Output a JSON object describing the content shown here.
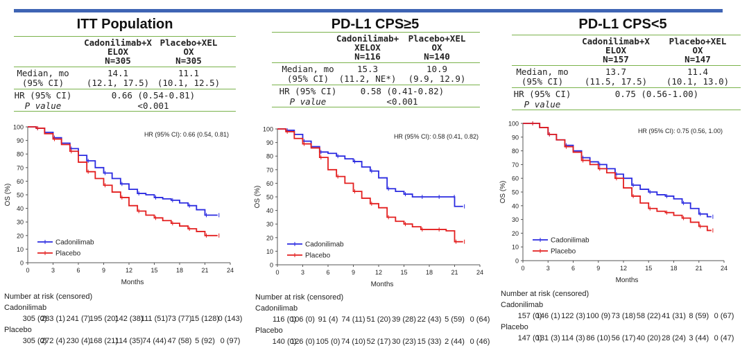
{
  "slide": {
    "accent_color": "#3f64b4",
    "line_color": "#79b24a"
  },
  "colors": {
    "cadonilimab": "#2a2ae0",
    "placebo": "#e31e1e"
  },
  "panels": [
    {
      "title": "ITT Population",
      "col1": [
        "Cadonilimab+X",
        "ELOX",
        "N=305"
      ],
      "col2": [
        "Placebo+XEL",
        "OX",
        "N=305"
      ],
      "median_label": [
        "Median, mo",
        "(95% CI)"
      ],
      "median1": [
        "14.1",
        "(12.1, 17.5)"
      ],
      "median2": [
        "11.1",
        "(10.1, 12.5)"
      ],
      "hr_label": "HR (95% CI)",
      "hr_value": "0.66 (0.54-0.81)",
      "p_label": "P value",
      "p_value": "<0.001",
      "hr_annotation": "HR (95% CI): 0.66 (0.54, 0.81)",
      "risk_title": "Number at risk (censored)",
      "risk_cad_label": "Cadonilimab",
      "risk_pbo_label": "Placebo",
      "risk_cad": [
        "305 (0)",
        "283 (1)",
        "241 (7)",
        "195 (20)",
        "142 (38)",
        "111 (51)",
        "73 (77)",
        "15 (128)",
        "0 (143)"
      ],
      "risk_pbo": [
        "305 (0)",
        "272 (4)",
        "230 (4)",
        "168 (21)",
        "114 (35)",
        "74 (44)",
        "47 (58)",
        "5 (92)",
        "0 (97)"
      ]
    },
    {
      "title": "PD-L1 CPS≥5",
      "col1": [
        "Cadonilimab+",
        "XELOX",
        "N=116"
      ],
      "col2": [
        "Placebo+XEL",
        "OX",
        "N=140"
      ],
      "median_label": [
        "Median, mo",
        "(95% CI)"
      ],
      "median1": [
        "15.3",
        "(11.2, NE*)"
      ],
      "median2": [
        "10.9",
        "(9.9, 12.9)"
      ],
      "hr_label": "HR (95% CI)",
      "hr_value": "0.58 (0.41-0.82)",
      "p_label": "P value",
      "p_value": "<0.001",
      "hr_annotation": "HR (95% CI): 0.58 (0.41, 0.82)",
      "risk_title": "Number at risk (censored)",
      "risk_cad_label": "Cadonilimab",
      "risk_pbo_label": "Placebo",
      "risk_cad": [
        "116 (0)",
        "106 (0)",
        "91 (4)",
        "74 (11)",
        "51 (20)",
        "39 (28)",
        "22 (43)",
        "5 (59)",
        "0 (64)"
      ],
      "risk_pbo": [
        "140 (0)",
        "126 (0)",
        "105 (0)",
        "74 (10)",
        "52 (17)",
        "30 (23)",
        "15 (33)",
        "2 (44)",
        "0 (46)"
      ]
    },
    {
      "title": "PD-L1 CPS<5",
      "col1": [
        "Cadonilimab+X",
        "ELOX",
        "N=157"
      ],
      "col2": [
        "Placebo+XEL",
        "OX",
        "N=147"
      ],
      "median_label": [
        "Median, mo",
        "(95% CI)"
      ],
      "median1": [
        "13.7",
        "(11.5, 17.5)"
      ],
      "median2": [
        "11.4",
        "(10.1, 13.0)"
      ],
      "hr_label": "HR (95% CI)",
      "hr_value": "0.75 (0.56-1.00)",
      "p_label": "P value",
      "p_value": "",
      "hr_annotation": "HR (95% CI): 0.75 (0.56, 1.00)",
      "risk_title": "Number at risk (censored)",
      "risk_cad_label": "Cadonilimab",
      "risk_pbo_label": "Placebo",
      "risk_cad": [
        "157 (0)",
        "146 (1)",
        "122 (3)",
        "100 (9)",
        "73 (18)",
        "58 (22)",
        "41 (31)",
        "8 (59)",
        "0 (67)"
      ],
      "risk_pbo": [
        "147 (0)",
        "131 (3)",
        "114 (3)",
        "86 (10)",
        "56 (17)",
        "40 (20)",
        "28 (24)",
        "3 (44)",
        "0 (47)"
      ]
    }
  ],
  "chart_data": [
    {
      "type": "line",
      "title": "ITT Population",
      "xlabel": "Months",
      "ylabel": "OS (%)",
      "xlim": [
        0,
        24
      ],
      "ylim": [
        0,
        100
      ],
      "xticks": [
        0,
        3,
        6,
        9,
        12,
        15,
        18,
        21,
        24
      ],
      "yticks": [
        0,
        10,
        20,
        30,
        40,
        50,
        60,
        70,
        80,
        90,
        100
      ],
      "legend": "bottom-left",
      "annotation": "HR (95% CI): 0.66 (0.54, 0.81)",
      "series": [
        {
          "name": "Cadonilimab",
          "x": [
            0,
            1,
            2,
            3,
            4,
            5,
            6,
            7,
            8,
            9,
            10,
            11,
            12,
            13,
            14,
            15,
            16,
            17,
            18,
            19,
            20,
            21,
            22,
            22.5
          ],
          "y": [
            100,
            99,
            96,
            92,
            88,
            84,
            79,
            75,
            70,
            66,
            62,
            58,
            54,
            51,
            50,
            48,
            47,
            46,
            44,
            42,
            39,
            35,
            35,
            35
          ]
        },
        {
          "name": "Placebo",
          "x": [
            0,
            1,
            2,
            3,
            4,
            5,
            6,
            7,
            8,
            9,
            10,
            11,
            12,
            13,
            14,
            15,
            16,
            17,
            18,
            19,
            20,
            21,
            22,
            22.5
          ],
          "y": [
            100,
            99,
            95,
            91,
            87,
            82,
            74,
            67,
            62,
            57,
            52,
            48,
            42,
            38,
            35,
            33,
            31,
            29,
            27,
            25,
            23,
            20,
            20,
            20
          ]
        }
      ]
    },
    {
      "type": "line",
      "title": "PD-L1 CPS≥5",
      "xlabel": "Months",
      "ylabel": "OS (%)",
      "xlim": [
        0,
        24
      ],
      "ylim": [
        0,
        100
      ],
      "xticks": [
        0,
        3,
        6,
        9,
        12,
        15,
        18,
        21,
        24
      ],
      "yticks": [
        0,
        10,
        20,
        30,
        40,
        50,
        60,
        70,
        80,
        90,
        100
      ],
      "legend": "bottom-left",
      "annotation": "HR (95% CI): 0.58 (0.41, 0.82)",
      "series": [
        {
          "name": "Cadonilimab",
          "x": [
            0,
            1,
            2,
            3,
            4,
            5,
            6,
            7,
            8,
            9,
            10,
            11,
            12,
            13,
            14,
            15,
            16,
            17,
            18,
            19,
            20,
            20.8,
            21,
            22
          ],
          "y": [
            100,
            99,
            96,
            91,
            87,
            83,
            82,
            80,
            78,
            76,
            72,
            69,
            64,
            56,
            54,
            52,
            50,
            50,
            50,
            50,
            50,
            50,
            43,
            43
          ]
        },
        {
          "name": "Placebo",
          "x": [
            0,
            1,
            2,
            3,
            4,
            5,
            6,
            7,
            8,
            9,
            10,
            11,
            12,
            13,
            14,
            15,
            16,
            17,
            18,
            19,
            20,
            21,
            21.5,
            22
          ],
          "y": [
            100,
            98,
            93,
            89,
            86,
            79,
            70,
            65,
            60,
            54,
            49,
            45,
            42,
            35,
            32,
            30,
            28,
            26,
            26,
            26,
            25,
            17,
            17,
            17
          ]
        }
      ]
    },
    {
      "type": "line",
      "title": "PD-L1 CPS<5",
      "xlabel": "Months",
      "ylabel": "OS (%)",
      "xlim": [
        0,
        24
      ],
      "ylim": [
        0,
        100
      ],
      "xticks": [
        0,
        3,
        6,
        9,
        12,
        15,
        18,
        21,
        24
      ],
      "yticks": [
        0,
        10,
        20,
        30,
        40,
        50,
        60,
        70,
        80,
        90,
        100
      ],
      "legend": "bottom-left",
      "annotation": "HR (95% CI): 0.75 (0.56, 1.00)",
      "series": [
        {
          "name": "Cadonilimab",
          "x": [
            0,
            1,
            2,
            3,
            4,
            5,
            6,
            7,
            8,
            9,
            10,
            11,
            12,
            13,
            14,
            15,
            16,
            17,
            18,
            19,
            20,
            21,
            22,
            22.5
          ],
          "y": [
            100,
            100,
            97,
            92,
            88,
            84,
            80,
            75,
            72,
            70,
            67,
            63,
            60,
            55,
            52,
            50,
            48,
            47,
            45,
            42,
            38,
            34,
            32,
            32
          ]
        },
        {
          "name": "Placebo",
          "x": [
            0,
            1,
            2,
            3,
            4,
            5,
            6,
            7,
            8,
            9,
            10,
            11,
            12,
            13,
            14,
            15,
            16,
            17,
            18,
            19,
            20,
            21,
            22,
            22.5
          ],
          "y": [
            100,
            100,
            97,
            92,
            88,
            83,
            79,
            73,
            70,
            67,
            64,
            60,
            53,
            47,
            42,
            38,
            36,
            35,
            33,
            31,
            28,
            25,
            22,
            22
          ]
        }
      ]
    }
  ]
}
